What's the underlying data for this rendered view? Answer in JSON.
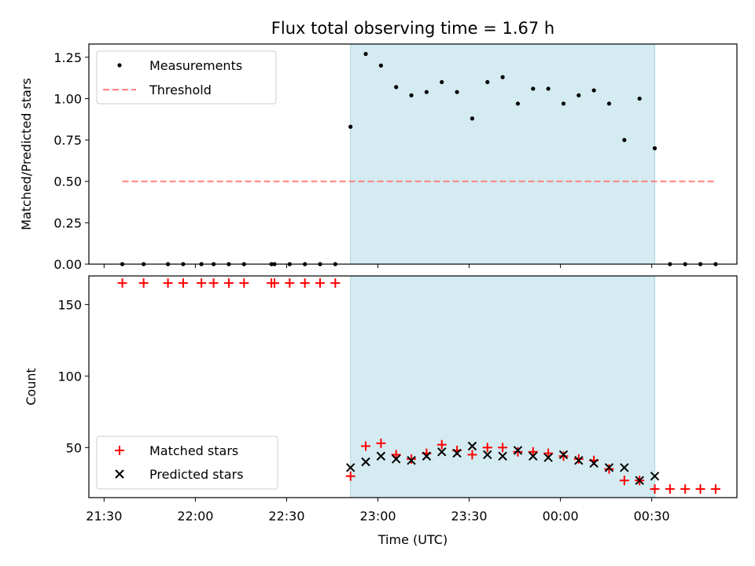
{
  "chart_data": [
    {
      "type": "scatter",
      "title": "Flux total observing time = 1.67 h",
      "xlabel": "",
      "ylabel": "Matched/Predicted stars",
      "ylim": [
        0,
        1.33
      ],
      "xlim": [
        "21:25",
        "00:58"
      ],
      "legend_placement": "top-left",
      "shaded_interval": [
        "22:51",
        "00:31"
      ],
      "shade_color": "#d3ebf1",
      "series": [
        {
          "name": "Measurements",
          "marker": "dot",
          "color": "#000000",
          "points": [
            [
              "21:36",
              0
            ],
            [
              "21:43",
              0
            ],
            [
              "21:51",
              0
            ],
            [
              "21:56",
              0
            ],
            [
              "22:02",
              0
            ],
            [
              "22:06",
              0
            ],
            [
              "22:11",
              0
            ],
            [
              "22:16",
              0
            ],
            [
              "22:25",
              0
            ],
            [
              "22:26",
              0
            ],
            [
              "22:31",
              0
            ],
            [
              "22:36",
              0
            ],
            [
              "22:41",
              0
            ],
            [
              "22:46",
              0
            ],
            [
              "22:51",
              0.83
            ],
            [
              "22:56",
              1.27
            ],
            [
              "23:01",
              1.2
            ],
            [
              "23:06",
              1.07
            ],
            [
              "23:11",
              1.02
            ],
            [
              "23:16",
              1.04
            ],
            [
              "23:21",
              1.1
            ],
            [
              "23:26",
              1.04
            ],
            [
              "23:31",
              0.88
            ],
            [
              "23:36",
              1.1
            ],
            [
              "23:41",
              1.13
            ],
            [
              "23:46",
              0.97
            ],
            [
              "23:51",
              1.06
            ],
            [
              "23:56",
              1.06
            ],
            [
              "00:01",
              0.97
            ],
            [
              "00:06",
              1.02
            ],
            [
              "00:11",
              1.05
            ],
            [
              "00:16",
              0.97
            ],
            [
              "00:21",
              0.75
            ],
            [
              "00:26",
              1.0
            ],
            [
              "00:31",
              0.7
            ],
            [
              "00:36",
              0
            ],
            [
              "00:41",
              0
            ],
            [
              "00:46",
              0
            ],
            [
              "00:51",
              0
            ]
          ]
        },
        {
          "name": "Threshold",
          "marker": "dashed-line",
          "color": "#ff8080",
          "points": [
            [
              "21:36",
              0.5
            ],
            [
              "00:51",
              0.5
            ]
          ]
        }
      ]
    },
    {
      "type": "scatter",
      "title": "",
      "xlabel": "Time (UTC)",
      "ylabel": "Count",
      "ylim": [
        15,
        170
      ],
      "y_ticks": [
        50,
        100,
        150
      ],
      "xlim": [
        "21:25",
        "00:58"
      ],
      "x_ticks": [
        "21:30",
        "22:00",
        "22:30",
        "23:00",
        "23:30",
        "00:00",
        "00:30"
      ],
      "legend_placement": "bottom-left",
      "shaded_interval": [
        "22:51",
        "00:31"
      ],
      "shade_color": "#d3ebf1",
      "series": [
        {
          "name": "Matched stars",
          "marker": "plus",
          "color": "#ff0000",
          "points": [
            [
              "21:36",
              165
            ],
            [
              "21:43",
              165
            ],
            [
              "21:51",
              165
            ],
            [
              "21:56",
              165
            ],
            [
              "22:02",
              165
            ],
            [
              "22:06",
              165
            ],
            [
              "22:11",
              165
            ],
            [
              "22:16",
              165
            ],
            [
              "22:25",
              165
            ],
            [
              "22:26",
              165
            ],
            [
              "22:31",
              165
            ],
            [
              "22:36",
              165
            ],
            [
              "22:41",
              165
            ],
            [
              "22:46",
              165
            ],
            [
              "22:51",
              30
            ],
            [
              "22:56",
              51
            ],
            [
              "23:01",
              53
            ],
            [
              "23:06",
              45
            ],
            [
              "23:11",
              42
            ],
            [
              "23:16",
              46
            ],
            [
              "23:21",
              52
            ],
            [
              "23:26",
              48
            ],
            [
              "23:31",
              45
            ],
            [
              "23:36",
              50
            ],
            [
              "23:41",
              50
            ],
            [
              "23:46",
              47
            ],
            [
              "23:51",
              47
            ],
            [
              "23:56",
              46
            ],
            [
              "00:01",
              44
            ],
            [
              "00:06",
              42
            ],
            [
              "00:11",
              41
            ],
            [
              "00:16",
              35
            ],
            [
              "00:21",
              27
            ],
            [
              "00:26",
              27
            ],
            [
              "00:31",
              21
            ],
            [
              "00:36",
              21
            ],
            [
              "00:41",
              21
            ],
            [
              "00:46",
              21
            ],
            [
              "00:51",
              21
            ]
          ]
        },
        {
          "name": "Predicted stars",
          "marker": "x",
          "color": "#000000",
          "points": [
            [
              "22:51",
              36
            ],
            [
              "22:56",
              40
            ],
            [
              "23:01",
              44
            ],
            [
              "23:06",
              42
            ],
            [
              "23:11",
              41
            ],
            [
              "23:16",
              44
            ],
            [
              "23:21",
              47
            ],
            [
              "23:26",
              46
            ],
            [
              "23:31",
              51
            ],
            [
              "23:36",
              45
            ],
            [
              "23:41",
              44
            ],
            [
              "23:46",
              48
            ],
            [
              "23:51",
              44
            ],
            [
              "23:56",
              43
            ],
            [
              "00:01",
              45
            ],
            [
              "00:06",
              41
            ],
            [
              "00:11",
              39
            ],
            [
              "00:16",
              36
            ],
            [
              "00:21",
              36
            ],
            [
              "00:26",
              27
            ],
            [
              "00:31",
              30
            ]
          ]
        }
      ]
    }
  ],
  "top_ticks": [
    "0.00",
    "0.25",
    "0.50",
    "0.75",
    "1.00",
    "1.25"
  ],
  "top_tick_values": [
    0,
    0.25,
    0.5,
    0.75,
    1.0,
    1.25
  ],
  "bottom_tick_labels": [
    "50",
    "100",
    "150"
  ]
}
